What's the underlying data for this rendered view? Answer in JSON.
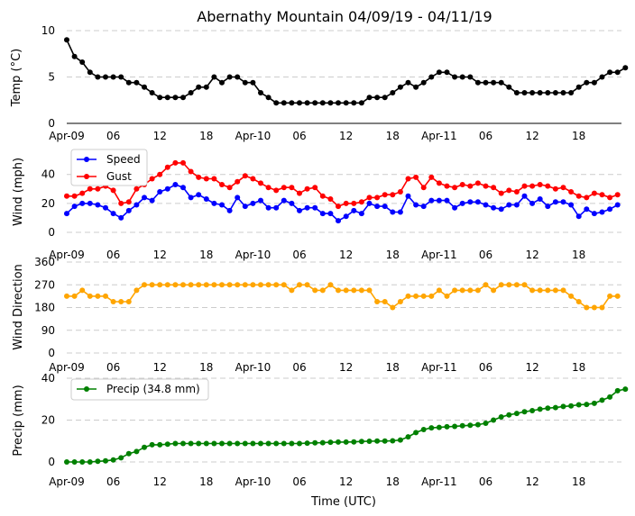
{
  "chart_data": {
    "title": "Abernathy Mountain 04/09/19 - 04/11/19",
    "xlabel": "Time (UTC)",
    "x_unit": "hours since 2019-04-09 00:00 UTC",
    "x_range": [
      0,
      71.5
    ],
    "x_ticks": [
      {
        "x": 0,
        "label": "Apr-09"
      },
      {
        "x": 6,
        "label": "06"
      },
      {
        "x": 12,
        "label": "12"
      },
      {
        "x": 18,
        "label": "18"
      },
      {
        "x": 24,
        "label": "Apr-10"
      },
      {
        "x": 30,
        "label": "06"
      },
      {
        "x": 36,
        "label": "12"
      },
      {
        "x": 42,
        "label": "18"
      },
      {
        "x": 48,
        "label": "Apr-11"
      },
      {
        "x": 54,
        "label": "06"
      },
      {
        "x": 60,
        "label": "12"
      },
      {
        "x": 66,
        "label": "18"
      }
    ],
    "grid": "horizontal dashed",
    "panels": [
      {
        "type": "line",
        "ylabel": "Temp ($^\\circ$C)",
        "ylabel_display": "Temp (°C)",
        "ylim": [
          0,
          10
        ],
        "yticks": [
          "0",
          "5",
          "10"
        ],
        "legend": null,
        "series": [
          {
            "name": "",
            "color": "#000000",
            "values": [
              9,
              7.2,
              6.6,
              5.5,
              5,
              5,
              5,
              5,
              4.4,
              4.4,
              3.9,
              3.3,
              2.8,
              2.8,
              2.8,
              2.8,
              3.3,
              3.9,
              3.9,
              5,
              4.4,
              5,
              5,
              4.4,
              4.4,
              3.3,
              2.8,
              2.2,
              2.2,
              2.2,
              2.2,
              2.2,
              2.2,
              2.2,
              2.2,
              2.2,
              2.2,
              2.2,
              2.2,
              2.8,
              2.8,
              2.8,
              3.3,
              3.9,
              4.4,
              3.9,
              4.4,
              5,
              5.5,
              5.5,
              5,
              5,
              5,
              4.4,
              4.4,
              4.4,
              4.4,
              3.9,
              3.3,
              3.3,
              3.3,
              3.3,
              3.3,
              3.3,
              3.3,
              3.3,
              3.9,
              4.4,
              4.4,
              5,
              5.5,
              5.5,
              6
            ]
          }
        ]
      },
      {
        "type": "line",
        "ylabel": "Wind (mph)",
        "ylim": [
          0,
          56
        ],
        "yticks": [
          "0",
          "20",
          "40"
        ],
        "legend": "upper left",
        "series": [
          {
            "name": "Speed",
            "color": "#0000ff",
            "values": [
              13,
              18,
              20,
              20,
              19,
              17,
              13,
              10,
              15,
              19,
              24,
              22,
              28,
              30,
              33,
              31,
              24,
              26,
              23,
              20,
              19,
              15,
              24,
              18,
              20,
              22,
              17,
              17,
              22,
              20,
              15,
              17,
              17,
              13,
              13,
              8,
              11,
              15,
              13,
              20,
              18,
              18,
              14,
              14,
              25,
              19,
              18,
              22,
              22,
              22,
              17,
              20,
              21,
              21,
              19,
              17,
              16,
              19,
              19,
              25,
              20,
              23,
              18,
              21,
              21,
              19,
              11,
              16,
              13,
              14,
              16,
              19
            ]
          },
          {
            "name": "Gust",
            "color": "#ff0000",
            "values": [
              25,
              25,
              27,
              30,
              30,
              32,
              29,
              20,
              21,
              30,
              33,
              37,
              40,
              45,
              48,
              48,
              42,
              38,
              37,
              37,
              33,
              31,
              35,
              39,
              37,
              34,
              31,
              29,
              31,
              31,
              27,
              30,
              31,
              25,
              23,
              18,
              20,
              20,
              21,
              24,
              24,
              26,
              26,
              28,
              37,
              38,
              31,
              38,
              34,
              32,
              31,
              33,
              32,
              34,
              32,
              31,
              27,
              29,
              28,
              32,
              32,
              33,
              32,
              30,
              31,
              28,
              25,
              24,
              27,
              26,
              24,
              26
            ]
          }
        ]
      },
      {
        "type": "line",
        "ylabel": "Wind Direction",
        "ylim": [
          0,
          360
        ],
        "yticks": [
          "0",
          "90",
          "180",
          "270",
          "360"
        ],
        "legend": null,
        "series": [
          {
            "name": "",
            "color": "#ffa500",
            "values": [
              225,
              225,
              248,
              225,
              225,
              225,
              203,
              203,
              203,
              248,
              270,
              270,
              270,
              270,
              270,
              270,
              270,
              270,
              270,
              270,
              270,
              270,
              270,
              270,
              270,
              270,
              270,
              270,
              270,
              248,
              270,
              270,
              248,
              248,
              270,
              248,
              248,
              248,
              248,
              248,
              203,
              203,
              180,
              203,
              225,
              225,
              225,
              225,
              248,
              225,
              248,
              248,
              248,
              248,
              270,
              248,
              270,
              270,
              270,
              270,
              248,
              248,
              248,
              248,
              248,
              225,
              203,
              180,
              180,
              180,
              225,
              225
            ]
          }
        ]
      },
      {
        "type": "line",
        "ylabel": "Precip (mm)",
        "ylim": [
          0,
          40
        ],
        "yticks": [
          "0",
          "20",
          "40"
        ],
        "legend": "upper left",
        "series": [
          {
            "name": "Precip (34.8 mm)",
            "color": "#008000",
            "values": [
              0,
              0,
              0,
              0,
              0.3,
              0.5,
              1,
              2,
              4,
              5,
              7,
              8.2,
              8.2,
              8.5,
              8.8,
              8.8,
              8.8,
              8.8,
              8.8,
              8.8,
              8.8,
              8.8,
              8.8,
              8.8,
              8.8,
              8.8,
              8.8,
              8.8,
              8.8,
              8.8,
              8.8,
              9,
              9.1,
              9.2,
              9.4,
              9.5,
              9.5,
              9.6,
              9.8,
              9.9,
              10,
              10,
              10.1,
              10.5,
              12,
              14,
              15.5,
              16.3,
              16.5,
              16.8,
              17,
              17.3,
              17.5,
              17.8,
              18.5,
              20,
              21.5,
              22.5,
              23.2,
              24,
              24.5,
              25.2,
              25.7,
              26,
              26.5,
              26.8,
              27.3,
              27.5,
              28,
              29.5,
              31,
              34,
              34.8
            ]
          }
        ]
      }
    ]
  }
}
